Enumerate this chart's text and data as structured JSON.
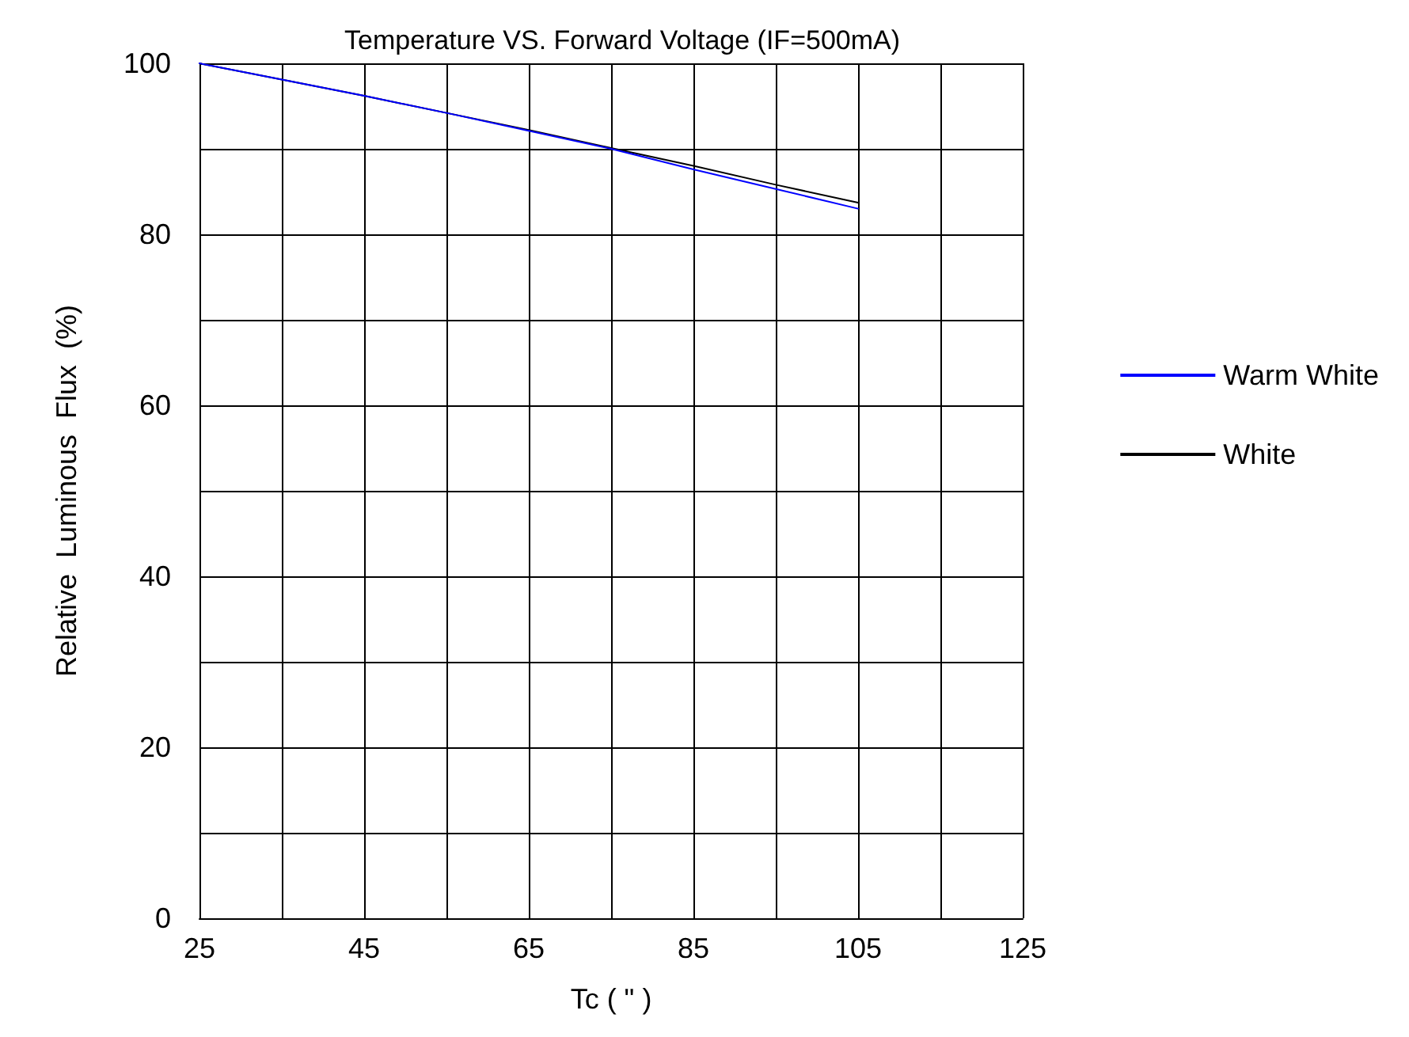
{
  "chart_data": {
    "type": "line",
    "title": "Temperature VS. Forward Voltage (IF=500mA)",
    "xlabel": "Tc ( \" )",
    "ylabel": "Relative  Luminous  Flux  (%)",
    "x": [
      25,
      35,
      45,
      55,
      65,
      75,
      85,
      95,
      105
    ],
    "series": [
      {
        "name": "Warm White",
        "color": "#0000ff",
        "values": [
          100,
          98.1,
          96.2,
          94.2,
          92.1,
          90.0,
          87.6,
          85.3,
          83.0
        ]
      },
      {
        "name": "White",
        "color": "#000000",
        "values": [
          100,
          98.1,
          96.2,
          94.2,
          92.2,
          90.1,
          88.0,
          85.8,
          83.7
        ]
      }
    ],
    "xlim": [
      25,
      125
    ],
    "xticks": [
      25,
      45,
      65,
      85,
      105,
      125
    ],
    "ylim": [
      0,
      100
    ],
    "yticks": [
      0,
      20,
      40,
      60,
      80,
      100
    ],
    "grid": true,
    "legend": "right",
    "marker": "none",
    "line_style": "solid"
  }
}
